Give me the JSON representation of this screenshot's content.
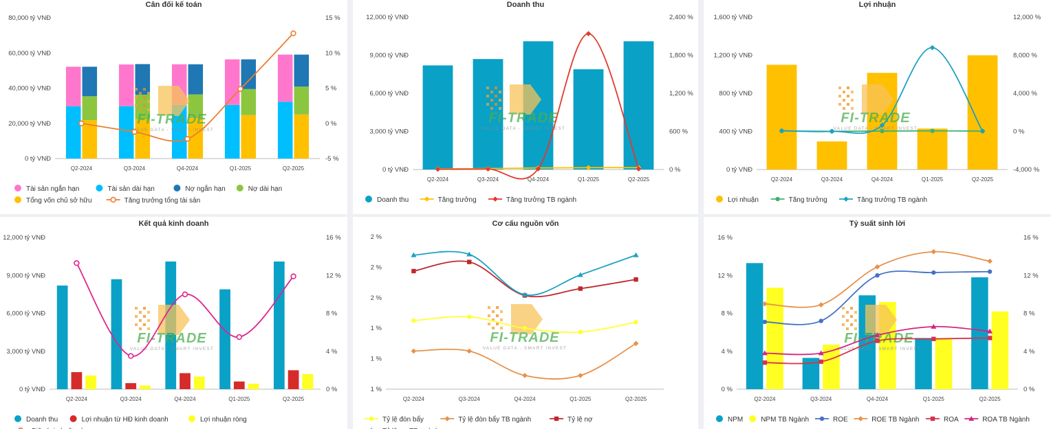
{
  "watermark": {
    "brand": "FI-TRADE",
    "tagline": "VALUE DATA - SMART INVEST"
  },
  "quarters": [
    "Q2-2024",
    "Q3-2024",
    "Q4-2024",
    "Q1-2025",
    "Q2-2025"
  ],
  "chart_data": [
    {
      "type": "bar",
      "title": "Cân đối kế toán",
      "categories": [
        "Q2-2024",
        "Q3-2024",
        "Q4-2024",
        "Q1-2025",
        "Q2-2025"
      ],
      "y_left": {
        "min": 0,
        "max": 80000,
        "ticks": [
          "0 tỷ VNĐ",
          "20,000 tỷ VNĐ",
          "40,000 tỷ VNĐ",
          "60,000 tỷ VNĐ",
          "80,000 tỷ VNĐ"
        ]
      },
      "y_right": {
        "min": -5,
        "max": 15,
        "ticks": [
          "-5 %",
          "0 %",
          "5 %",
          "10 %",
          "15 %"
        ]
      },
      "stacks": [
        {
          "segments": [
            {
              "name": "Tài sản dài hạn",
              "color": "#00bfff",
              "values": [
                29700,
                29800,
                30500,
                30500,
                32300
              ]
            },
            {
              "name": "Tài sản ngắn hạn",
              "color": "#ff77cc",
              "values": [
                22500,
                23700,
                23100,
                25900,
                26800
              ]
            }
          ]
        },
        {
          "segments": [
            {
              "name": "Tổng vốn chủ sở hữu",
              "color": "#ffc000",
              "values": [
                21800,
                22300,
                23000,
                24700,
                25100
              ]
            },
            {
              "name": "Nợ dài hạn",
              "color": "#8cc63f",
              "values": [
                13600,
                14000,
                13500,
                14800,
                15800
              ]
            },
            {
              "name": "Nợ ngắn hạn",
              "color": "#1f77b4",
              "values": [
                16800,
                17400,
                17100,
                16900,
                18200
              ]
            }
          ]
        }
      ],
      "lines": [
        {
          "name": "Tăng trưởng tổng tài sản",
          "color": "#ed7d31",
          "axis": "right",
          "marker": "hollow",
          "values": [
            0.0,
            -1.2,
            -2.2,
            4.9,
            12.8
          ]
        }
      ],
      "legend": [
        {
          "name": "Tài sản ngắn hạn",
          "color": "#ff77cc",
          "kind": "dot"
        },
        {
          "name": "Tài sản dài hạn",
          "color": "#00bfff",
          "kind": "dot"
        },
        {
          "name": "Nợ ngắn hạn",
          "color": "#1f77b4",
          "kind": "dot"
        },
        {
          "name": "Nợ dài hạn",
          "color": "#8cc63f",
          "kind": "dot"
        },
        {
          "name": "Tổng vốn chủ sở hữu",
          "color": "#ffc000",
          "kind": "dot"
        },
        {
          "name": "Tăng trưởng tổng tài sản",
          "color": "#ed7d31",
          "kind": "line-hollow"
        }
      ]
    },
    {
      "type": "bar",
      "title": "Doanh thu",
      "categories": [
        "Q2-2024",
        "Q3-2024",
        "Q4-2024",
        "Q1-2025",
        "Q2-2025"
      ],
      "y_left": {
        "min": 0,
        "max": 12000,
        "ticks": [
          "0 tỷ VNĐ",
          "3,000 tỷ VNĐ",
          "6,000 tỷ VNĐ",
          "9,000 tỷ VNĐ",
          "12,000 tỷ VNĐ"
        ]
      },
      "y_right": {
        "min": 0,
        "max": 2400,
        "ticks": [
          "0 %",
          "600 %",
          "1,200 %",
          "1,800 %",
          "2,400 %"
        ]
      },
      "bars": [
        {
          "name": "Doanh thu",
          "color": "#0aa1c7",
          "width": 0.6,
          "values": [
            8200,
            8700,
            10100,
            7900,
            10100
          ]
        }
      ],
      "lines": [
        {
          "name": "Tăng trưởng",
          "color": "#ffc000",
          "axis": "right",
          "marker": "diamond",
          "values": [
            10,
            15,
            25,
            30,
            30
          ]
        },
        {
          "name": "Tăng trưởng TB ngành",
          "color": "#e03a2e",
          "axis": "right",
          "marker": "diamond",
          "values": [
            5,
            8,
            12,
            2140,
            10
          ]
        }
      ],
      "legend": [
        {
          "name": "Doanh thu",
          "color": "#0aa1c7",
          "kind": "dot"
        },
        {
          "name": "Tăng trưởng",
          "color": "#ffc000",
          "kind": "line-diamond"
        },
        {
          "name": "Tăng trưởng TB ngành",
          "color": "#e03a2e",
          "kind": "line-diamond"
        }
      ]
    },
    {
      "type": "bar",
      "title": "Lợi nhuận",
      "categories": [
        "Q2-2024",
        "Q3-2024",
        "Q4-2024",
        "Q1-2025",
        "Q2-2025"
      ],
      "y_left": {
        "min": 0,
        "max": 1600,
        "ticks": [
          "0 tỷ VNĐ",
          "400 tỷ VNĐ",
          "800 tỷ VNĐ",
          "1,200 tỷ VNĐ",
          "1,600 tỷ VNĐ"
        ]
      },
      "y_right": {
        "min": -4000,
        "max": 12000,
        "ticks": [
          "-4,000 %",
          "0 %",
          "4,000 %",
          "8,000 %",
          "12,000 %"
        ]
      },
      "bars": [
        {
          "name": "Lợi nhuận",
          "color": "#ffc000",
          "width": 0.6,
          "values": [
            1100,
            295,
            1015,
            430,
            1200
          ]
        }
      ],
      "lines": [
        {
          "name": "Tăng trưởng",
          "color": "#3cb371",
          "axis": "right",
          "marker": "dot",
          "values": [
            50,
            20,
            40,
            60,
            40
          ]
        },
        {
          "name": "Tăng trưởng TB ngành",
          "color": "#1ba1c2",
          "axis": "right",
          "marker": "diamond",
          "values": [
            80,
            10,
            650,
            8800,
            20
          ]
        }
      ],
      "legend": [
        {
          "name": "Lợi nhuận",
          "color": "#ffc000",
          "kind": "dot"
        },
        {
          "name": "Tăng trưởng",
          "color": "#3cb371",
          "kind": "line-dot"
        },
        {
          "name": "Tăng trưởng TB ngành",
          "color": "#1ba1c2",
          "kind": "line-diamond"
        }
      ]
    },
    {
      "type": "bar",
      "title": "Kết quả kinh doanh",
      "categories": [
        "Q2-2024",
        "Q3-2024",
        "Q4-2024",
        "Q1-2025",
        "Q2-2025"
      ],
      "y_left": {
        "min": 0,
        "max": 12000,
        "ticks": [
          "0 tỷ VNĐ",
          "3,000 tỷ VNĐ",
          "6,000 tỷ VNĐ",
          "9,000 tỷ VNĐ",
          "12,000 tỷ VNĐ"
        ]
      },
      "y_right": {
        "min": 0,
        "max": 16,
        "ticks": [
          "0 %",
          "4 %",
          "8 %",
          "12 %",
          "16 %"
        ]
      },
      "bars": [
        {
          "name": "Doanh thu",
          "color": "#0aa1c7",
          "width": 0.2,
          "values": [
            8200,
            8700,
            10100,
            7900,
            10100
          ]
        },
        {
          "name": "Lợi nhuận từ HĐ kinh doanh",
          "color": "#d62b2b",
          "width": 0.2,
          "values": [
            1350,
            480,
            1270,
            610,
            1500
          ]
        },
        {
          "name": "Lợi nhuận ròng",
          "color": "#ffff22",
          "width": 0.2,
          "values": [
            1080,
            290,
            1000,
            430,
            1200
          ]
        }
      ],
      "lines": [
        {
          "name": "Biên lợi nhuận ròng",
          "color": "#e0248f",
          "axis": "right",
          "marker": "hollow",
          "values": [
            13.3,
            3.5,
            10.0,
            5.5,
            11.9
          ]
        }
      ],
      "legend": [
        {
          "name": "Doanh thu",
          "color": "#0aa1c7",
          "kind": "dot"
        },
        {
          "name": "Lợi nhuận từ HĐ kinh doanh",
          "color": "#d62b2b",
          "kind": "dot"
        },
        {
          "name": "Lợi nhuận ròng",
          "color": "#ffff22",
          "kind": "dot"
        },
        {
          "name": "Biên lợi nhuận ròng",
          "color": "#e07050",
          "kind": "line-hollow"
        }
      ]
    },
    {
      "type": "line",
      "title": "Cơ cấu nguồn vốn",
      "categories": [
        "Q2-2024",
        "Q3-2024",
        "Q4-2024",
        "Q1-2025",
        "Q2-2025"
      ],
      "y_left": {
        "min": 0.5,
        "max": 2.5,
        "ticks": [
          "1 %",
          "1 %",
          "1 %",
          "2 %",
          "2 %",
          "2 %"
        ]
      },
      "lines": [
        {
          "name": "Tỷ lệ đòn bẩy",
          "color": "#ffff33",
          "axis": "left",
          "marker": "dot",
          "values": [
            1.4,
            1.45,
            1.3,
            1.25,
            1.38
          ]
        },
        {
          "name": "Tỷ lệ đòn bẩy TB ngành",
          "color": "#e8914a",
          "axis": "left",
          "marker": "diamond",
          "values": [
            1.0,
            1.0,
            0.68,
            0.68,
            1.1
          ]
        },
        {
          "name": "Tỷ lệ nợ",
          "color": "#c0282d",
          "axis": "left",
          "marker": "square",
          "values": [
            2.05,
            2.17,
            1.73,
            1.82,
            1.94
          ]
        },
        {
          "name": "Tỷ lệ nợ TB ngành",
          "color": "#1ba1c2",
          "axis": "left",
          "marker": "triangle",
          "values": [
            2.26,
            2.27,
            1.74,
            2.0,
            2.26
          ]
        }
      ],
      "legend": [
        {
          "name": "Tỷ lệ đòn bẩy",
          "color": "#ffff33",
          "kind": "line-dot"
        },
        {
          "name": "Tỷ lệ đòn bẩy TB ngành",
          "color": "#e8914a",
          "kind": "line-diamond"
        },
        {
          "name": "Tỷ lệ nợ",
          "color": "#c0282d",
          "kind": "line-square"
        },
        {
          "name": "Tỷ lệ nợ TB ngành",
          "color": "#1ba1c2",
          "kind": "line-triangle"
        }
      ]
    },
    {
      "type": "bar",
      "title": "Tỷ suất sinh lời",
      "categories": [
        "Q2-2024",
        "Q3-2024",
        "Q4-2024",
        "Q1-2025",
        "Q2-2025"
      ],
      "y_left": {
        "min": 0,
        "max": 16,
        "ticks": [
          "0 %",
          "4 %",
          "8 %",
          "12 %",
          "16 %"
        ]
      },
      "y_right": {
        "min": 0,
        "max": 16,
        "ticks": [
          "0 %",
          "4 %",
          "8 %",
          "12 %",
          "16 %"
        ]
      },
      "bars": [
        {
          "name": "NPM",
          "color": "#0aa1c7",
          "width": 0.3,
          "values": [
            13.3,
            3.3,
            9.9,
            5.4,
            11.8
          ]
        },
        {
          "name": "NPM TB Ngành",
          "color": "#ffff22",
          "width": 0.3,
          "values": [
            10.7,
            4.7,
            9.2,
            5.4,
            8.2
          ]
        }
      ],
      "lines": [
        {
          "name": "ROE",
          "color": "#4472c4",
          "axis": "left",
          "marker": "dot",
          "values": [
            7.1,
            7.2,
            12.0,
            12.3,
            12.4
          ]
        },
        {
          "name": "ROE TB Ngành",
          "color": "#e8914a",
          "axis": "left",
          "marker": "diamond",
          "values": [
            9.0,
            8.9,
            12.9,
            14.5,
            13.5
          ]
        },
        {
          "name": "ROA",
          "color": "#d6334a",
          "axis": "left",
          "marker": "square",
          "values": [
            2.8,
            2.9,
            5.1,
            5.3,
            5.4
          ]
        },
        {
          "name": "ROA TB Ngành",
          "color": "#d6247f",
          "axis": "left",
          "marker": "triangle",
          "values": [
            3.8,
            3.8,
            5.7,
            6.6,
            6.1
          ]
        }
      ],
      "legend": [
        {
          "name": "NPM",
          "color": "#0aa1c7",
          "kind": "dot"
        },
        {
          "name": "NPM TB Ngành",
          "color": "#ffff22",
          "kind": "dot"
        },
        {
          "name": "ROE",
          "color": "#4472c4",
          "kind": "line-dot"
        },
        {
          "name": "ROE TB Ngành",
          "color": "#e8914a",
          "kind": "line-diamond"
        },
        {
          "name": "ROA",
          "color": "#d6334a",
          "kind": "line-square"
        },
        {
          "name": "ROA TB Ngành",
          "color": "#d6247f",
          "kind": "line-triangle"
        }
      ]
    }
  ]
}
